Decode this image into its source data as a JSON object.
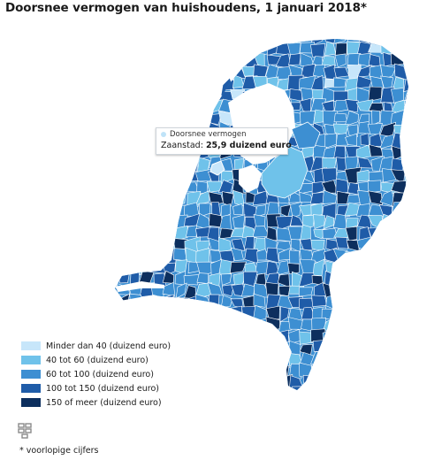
{
  "title": "Doorsnee vermogen van huishoudens, 1 januari 2018*",
  "tooltip": {
    "series": "Doorsnee vermogen",
    "region": "Zaanstad",
    "value": "25,9 duizend euro",
    "series_color": "#bfe3f8"
  },
  "legend": [
    {
      "label": "Minder dan 40 (duizend euro)",
      "color": "#c7e6fa"
    },
    {
      "label": "40 tot 60 (duizend euro)",
      "color": "#6fc2ea"
    },
    {
      "label": "60 tot 100 (duizend euro)",
      "color": "#3d8fd2"
    },
    {
      "label": "100 tot 150 (duizend euro)",
      "color": "#1f5ca8"
    },
    {
      "label": "150 of meer (duizend euro)",
      "color": "#0d2f5e"
    }
  ],
  "logo_icon": "cbs-logo-icon",
  "footnote": "* voorlopige cijfers"
}
